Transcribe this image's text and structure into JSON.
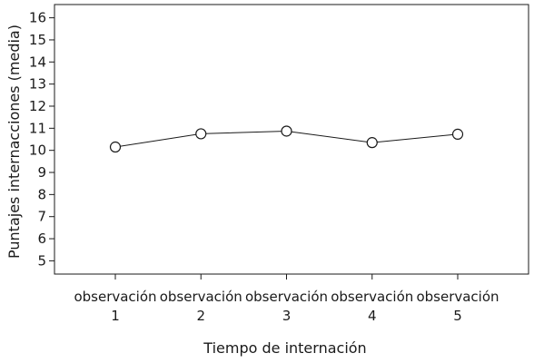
{
  "chart_data": {
    "type": "line",
    "title": "",
    "xlabel": "Tiempo de internación",
    "ylabel": "Puntajes internacciones (media)",
    "categories": [
      [
        "observación",
        "1"
      ],
      [
        "observación",
        "2"
      ],
      [
        "observación",
        "3"
      ],
      [
        "observación",
        "4"
      ],
      [
        "observación",
        "5"
      ]
    ],
    "yticks": [
      5,
      6,
      7,
      8,
      9,
      10,
      11,
      12,
      13,
      14,
      15,
      16
    ],
    "ylim": [
      4.4,
      16.6
    ],
    "grid": false,
    "legend": "none",
    "marker": "open-circle",
    "series": [
      {
        "values": [
          10.15,
          10.75,
          10.87,
          10.35,
          10.73
        ]
      }
    ]
  }
}
